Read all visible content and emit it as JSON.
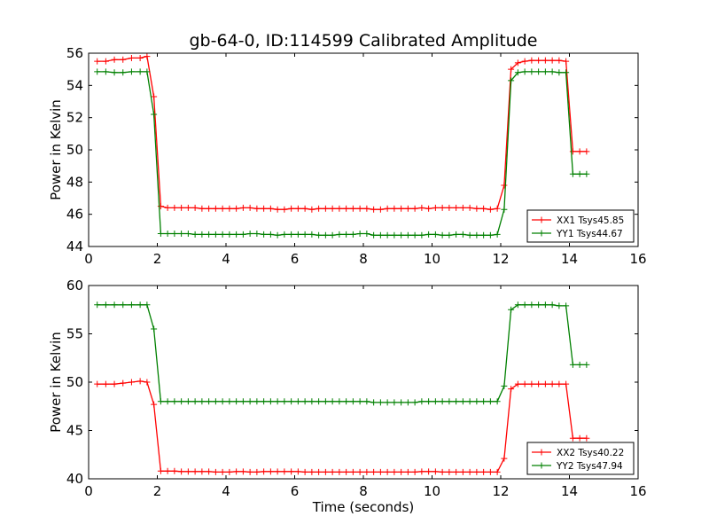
{
  "figure": {
    "title": "gb-64-0, ID:114599 Calibrated Amplitude"
  },
  "chart_data": [
    {
      "type": "line",
      "title": "gb-64-0, ID:114599 Calibrated Amplitude",
      "xlabel": "",
      "ylabel": "Power in Kelvin",
      "xlim": [
        0,
        16
      ],
      "ylim": [
        44,
        56
      ],
      "xticks": [
        "0",
        "2",
        "4",
        "6",
        "8",
        "10",
        "12",
        "14",
        "16"
      ],
      "yticks": [
        "44",
        "46",
        "48",
        "50",
        "52",
        "54",
        "56"
      ],
      "grid": false,
      "legend_position": "lower-right",
      "x": [
        0.25,
        0.5,
        0.75,
        1.0,
        1.25,
        1.5,
        1.7,
        1.9,
        2.1,
        2.3,
        2.5,
        2.7,
        2.9,
        3.1,
        3.3,
        3.5,
        3.7,
        3.9,
        4.1,
        4.3,
        4.5,
        4.7,
        4.9,
        5.1,
        5.3,
        5.5,
        5.7,
        5.9,
        6.1,
        6.3,
        6.5,
        6.7,
        6.9,
        7.1,
        7.3,
        7.5,
        7.7,
        7.9,
        8.1,
        8.3,
        8.5,
        8.7,
        8.9,
        9.1,
        9.3,
        9.5,
        9.7,
        9.9,
        10.1,
        10.3,
        10.5,
        10.7,
        10.9,
        11.1,
        11.3,
        11.5,
        11.7,
        11.9,
        12.1,
        12.3,
        12.5,
        12.7,
        12.9,
        13.1,
        13.3,
        13.5,
        13.7,
        13.9,
        14.1,
        14.3,
        14.5
      ],
      "series": [
        {
          "name": "XX1 Tsys45.85",
          "color": "#ff0000",
          "values": [
            55.5,
            55.5,
            55.6,
            55.6,
            55.7,
            55.7,
            55.8,
            53.3,
            46.5,
            46.4,
            46.4,
            46.4,
            46.4,
            46.4,
            46.35,
            46.35,
            46.35,
            46.35,
            46.35,
            46.35,
            46.4,
            46.4,
            46.35,
            46.35,
            46.35,
            46.3,
            46.3,
            46.35,
            46.35,
            46.35,
            46.3,
            46.35,
            46.35,
            46.35,
            46.35,
            46.35,
            46.35,
            46.35,
            46.35,
            46.3,
            46.3,
            46.35,
            46.35,
            46.35,
            46.35,
            46.35,
            46.4,
            46.35,
            46.4,
            46.4,
            46.4,
            46.4,
            46.4,
            46.4,
            46.35,
            46.35,
            46.3,
            46.35,
            47.8,
            55.0,
            55.4,
            55.5,
            55.55,
            55.55,
            55.55,
            55.55,
            55.55,
            55.5,
            49.9,
            49.9,
            49.9
          ]
        },
        {
          "name": "YY1 Tsys44.67",
          "color": "#008000",
          "values": [
            54.85,
            54.85,
            54.8,
            54.8,
            54.85,
            54.85,
            54.85,
            52.2,
            44.8,
            44.8,
            44.8,
            44.8,
            44.8,
            44.75,
            44.75,
            44.75,
            44.75,
            44.75,
            44.75,
            44.75,
            44.75,
            44.8,
            44.8,
            44.75,
            44.75,
            44.7,
            44.75,
            44.75,
            44.75,
            44.75,
            44.75,
            44.7,
            44.7,
            44.7,
            44.75,
            44.75,
            44.75,
            44.8,
            44.8,
            44.7,
            44.7,
            44.7,
            44.7,
            44.7,
            44.7,
            44.7,
            44.7,
            44.75,
            44.75,
            44.7,
            44.7,
            44.75,
            44.75,
            44.7,
            44.7,
            44.7,
            44.7,
            44.75,
            46.3,
            54.3,
            54.8,
            54.85,
            54.85,
            54.85,
            54.85,
            54.85,
            54.8,
            54.8,
            48.5,
            48.5,
            48.5
          ]
        }
      ]
    },
    {
      "type": "line",
      "title": "",
      "xlabel": "Time (seconds)",
      "ylabel": "Power in Kelvin",
      "xlim": [
        0,
        16
      ],
      "ylim": [
        40,
        60
      ],
      "xticks": [
        "0",
        "2",
        "4",
        "6",
        "8",
        "10",
        "12",
        "14",
        "16"
      ],
      "yticks": [
        "40",
        "45",
        "50",
        "55",
        "60"
      ],
      "grid": false,
      "legend_position": "lower-right",
      "x": [
        0.25,
        0.5,
        0.75,
        1.0,
        1.25,
        1.5,
        1.7,
        1.9,
        2.1,
        2.3,
        2.5,
        2.7,
        2.9,
        3.1,
        3.3,
        3.5,
        3.7,
        3.9,
        4.1,
        4.3,
        4.5,
        4.7,
        4.9,
        5.1,
        5.3,
        5.5,
        5.7,
        5.9,
        6.1,
        6.3,
        6.5,
        6.7,
        6.9,
        7.1,
        7.3,
        7.5,
        7.7,
        7.9,
        8.1,
        8.3,
        8.5,
        8.7,
        8.9,
        9.1,
        9.3,
        9.5,
        9.7,
        9.9,
        10.1,
        10.3,
        10.5,
        10.7,
        10.9,
        11.1,
        11.3,
        11.5,
        11.7,
        11.9,
        12.1,
        12.3,
        12.5,
        12.7,
        12.9,
        13.1,
        13.3,
        13.5,
        13.7,
        13.9,
        14.1,
        14.3,
        14.5
      ],
      "series": [
        {
          "name": "XX2 Tsys40.22",
          "color": "#ff0000",
          "values": [
            49.8,
            49.8,
            49.8,
            49.9,
            50.0,
            50.1,
            50.0,
            47.7,
            40.8,
            40.8,
            40.8,
            40.75,
            40.75,
            40.75,
            40.75,
            40.75,
            40.7,
            40.7,
            40.7,
            40.75,
            40.75,
            40.7,
            40.7,
            40.75,
            40.75,
            40.75,
            40.75,
            40.75,
            40.75,
            40.7,
            40.7,
            40.7,
            40.7,
            40.7,
            40.7,
            40.7,
            40.7,
            40.7,
            40.7,
            40.7,
            40.7,
            40.7,
            40.7,
            40.7,
            40.7,
            40.7,
            40.75,
            40.75,
            40.75,
            40.7,
            40.7,
            40.7,
            40.7,
            40.7,
            40.7,
            40.7,
            40.7,
            40.7,
            42.1,
            49.3,
            49.8,
            49.8,
            49.8,
            49.8,
            49.8,
            49.8,
            49.8,
            49.8,
            44.2,
            44.2,
            44.2
          ]
        },
        {
          "name": "YY2 Tsys47.94",
          "color": "#008000",
          "values": [
            58.0,
            58.0,
            58.0,
            58.0,
            58.0,
            58.0,
            58.0,
            55.5,
            48.0,
            48.0,
            48.0,
            48.0,
            48.0,
            48.0,
            48.0,
            48.0,
            48.0,
            48.0,
            48.0,
            48.0,
            48.0,
            48.0,
            48.0,
            48.0,
            48.0,
            48.0,
            48.0,
            48.0,
            48.0,
            48.0,
            48.0,
            48.0,
            48.0,
            48.0,
            48.0,
            48.0,
            48.0,
            48.0,
            48.0,
            47.9,
            47.9,
            47.9,
            47.9,
            47.9,
            47.9,
            47.9,
            48.0,
            48.0,
            48.0,
            48.0,
            48.0,
            48.0,
            48.0,
            48.0,
            48.0,
            48.0,
            48.0,
            48.0,
            49.6,
            57.5,
            58.0,
            58.0,
            58.0,
            58.0,
            58.0,
            58.0,
            57.9,
            57.9,
            51.8,
            51.8,
            51.8
          ]
        }
      ]
    }
  ]
}
